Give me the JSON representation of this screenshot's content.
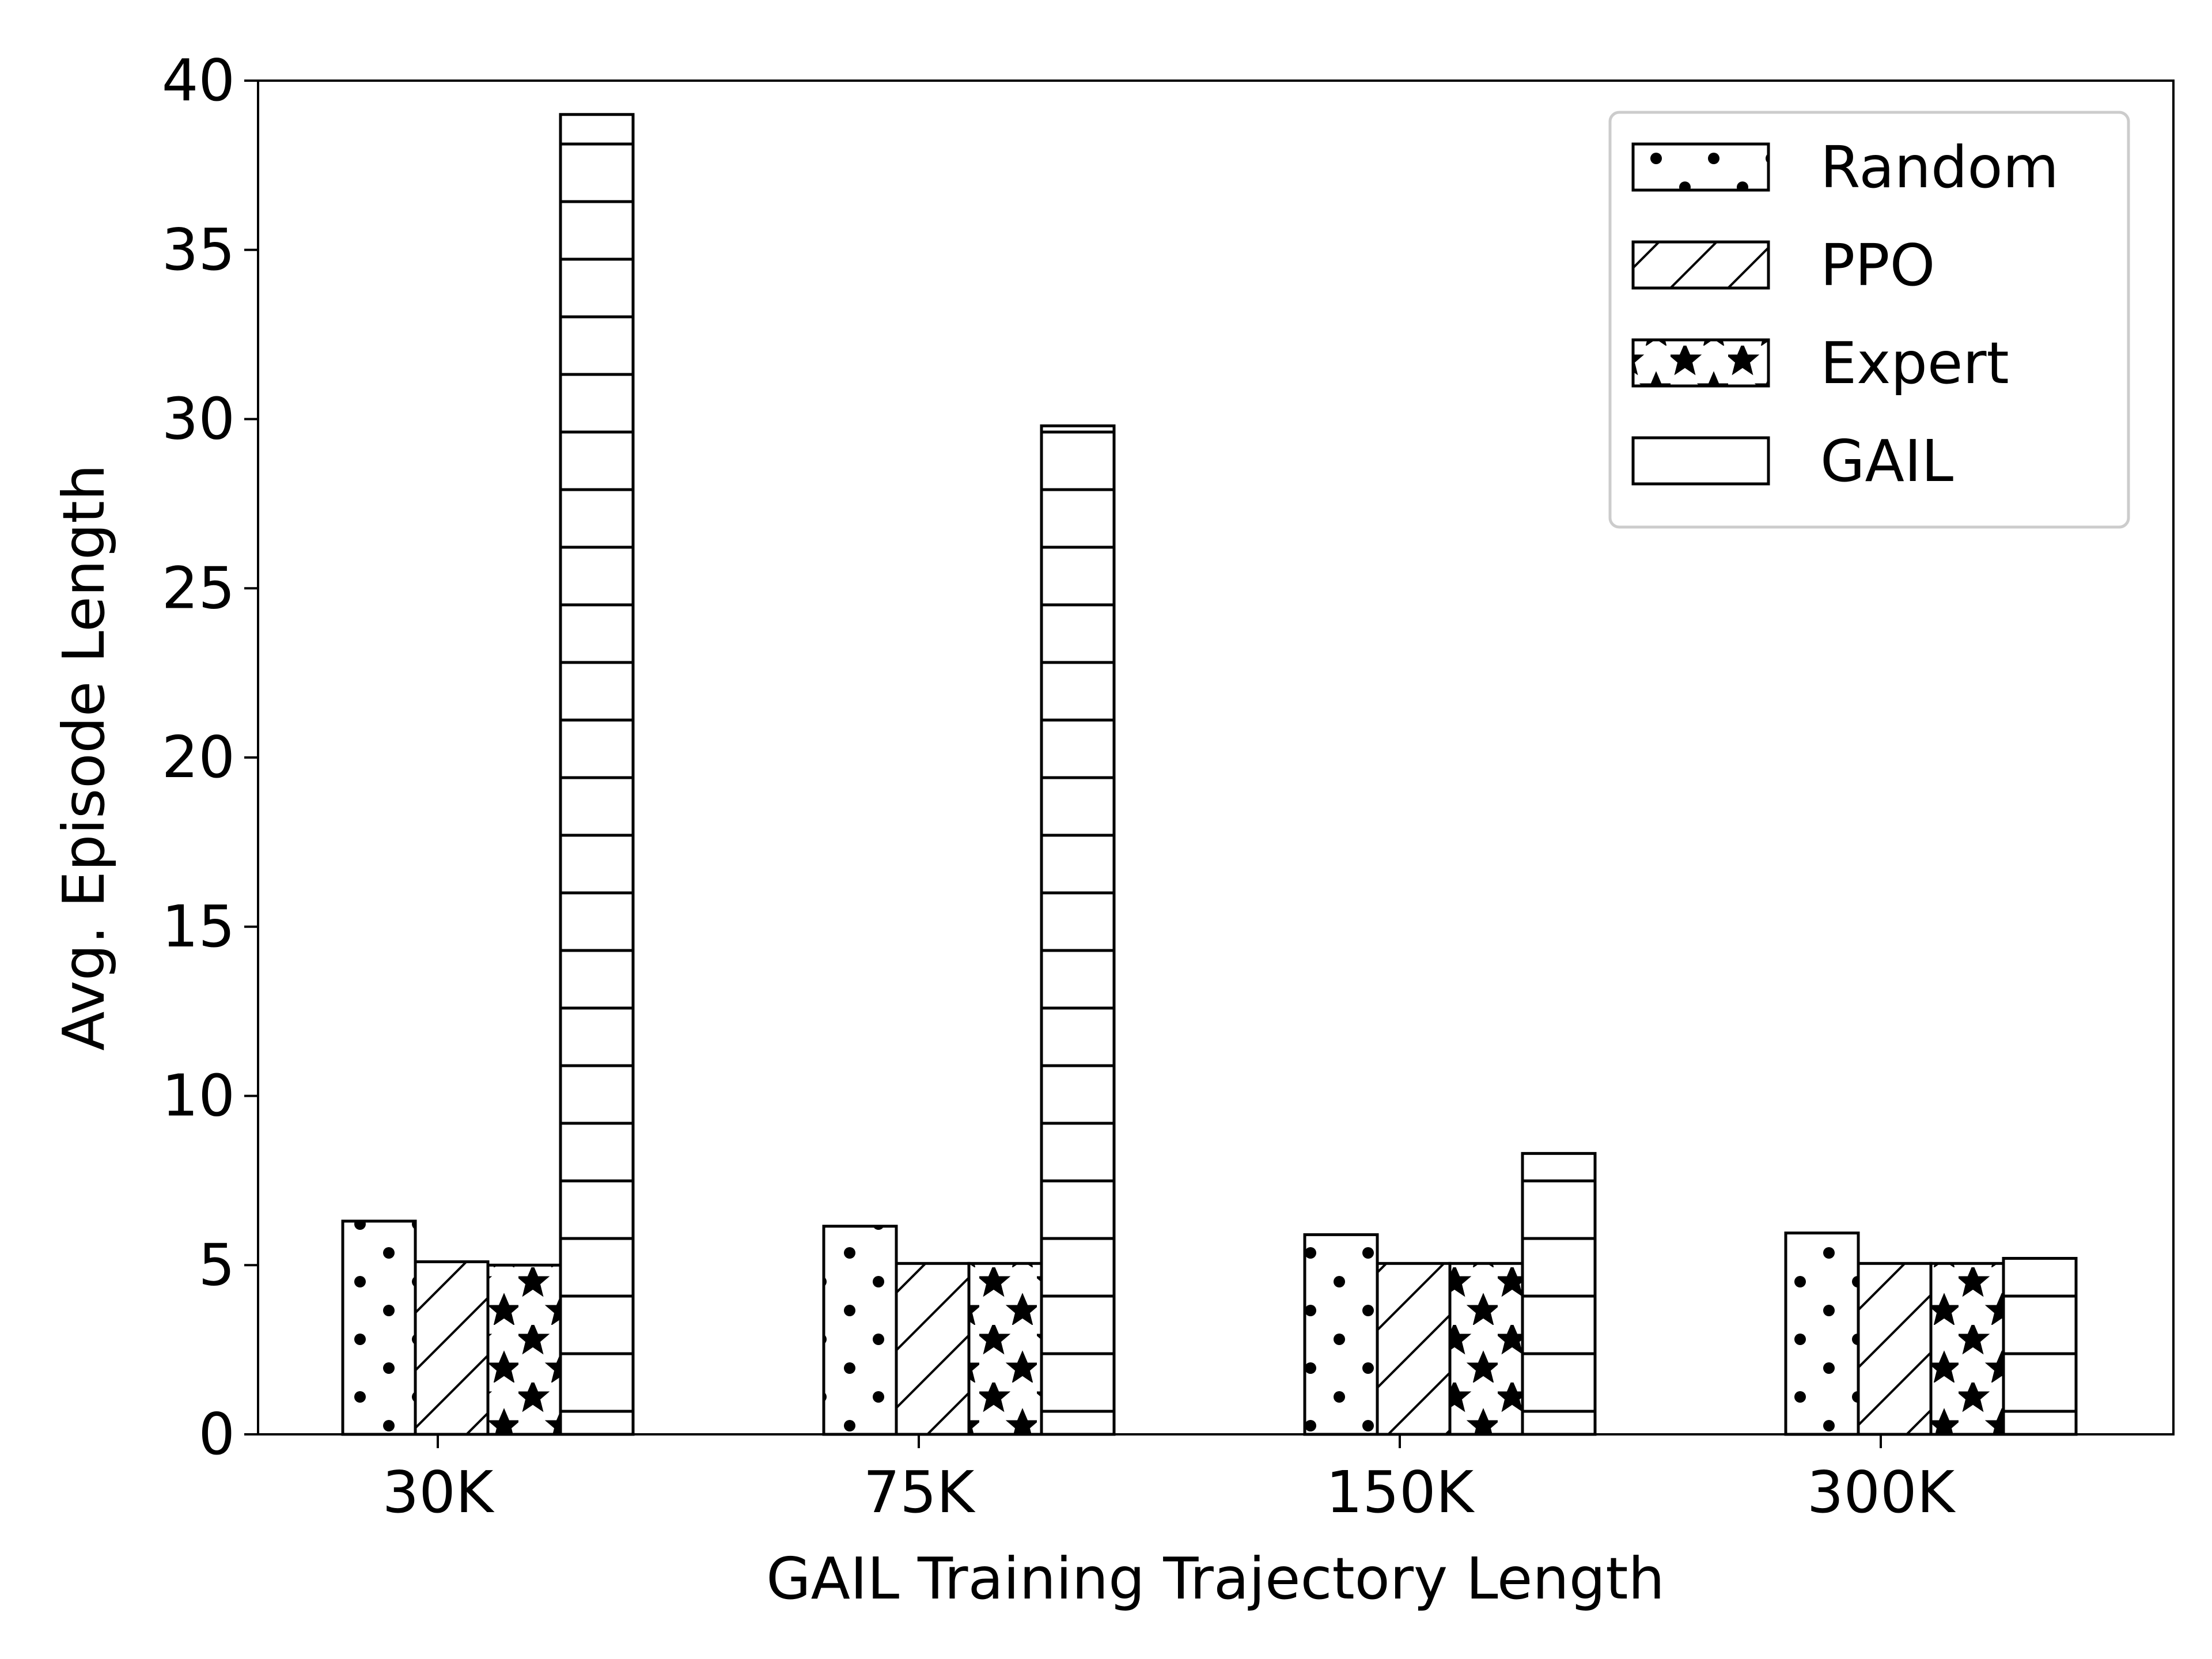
{
  "chart_data": {
    "type": "bar",
    "title": "",
    "xlabel": "GAIL Training Trajectory Length",
    "ylabel": "Avg. Episode Length",
    "ylim": [
      0,
      40
    ],
    "yticks": [
      0,
      5,
      10,
      15,
      20,
      25,
      30,
      35,
      40
    ],
    "ytick_labels": [
      "0",
      "5",
      "10",
      "15",
      "20",
      "25",
      "30",
      "35",
      "40"
    ],
    "categories": [
      "30K",
      "75K",
      "150K",
      "300K"
    ],
    "grid": false,
    "legend_position": "top-right",
    "series": [
      {
        "name": "Random",
        "hatch": "dots",
        "values": [
          6.3,
          6.15,
          5.9,
          5.95
        ]
      },
      {
        "name": "PPO",
        "hatch": "diagonal",
        "values": [
          5.1,
          5.05,
          5.05,
          5.05
        ]
      },
      {
        "name": "Expert",
        "hatch": "stars",
        "values": [
          5.0,
          5.05,
          5.05,
          5.05
        ]
      },
      {
        "name": "GAIL",
        "hatch": "horizontal",
        "values": [
          39.0,
          29.8,
          8.3,
          5.2
        ]
      }
    ],
    "colors": {
      "fill": "#ffffff",
      "edge": "#000000",
      "legend_frame": "#cccccc"
    }
  }
}
